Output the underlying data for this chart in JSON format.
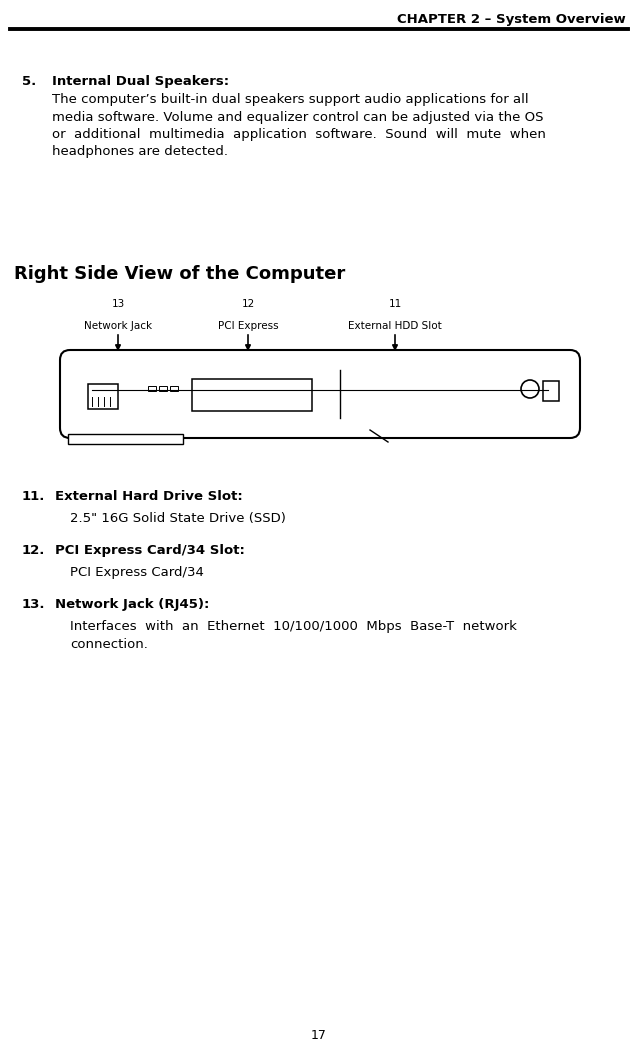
{
  "bg_color": "#ffffff",
  "header_text": "CHAPTER 2 – System Overview",
  "page_number": "17",
  "section5_label": "5.",
  "section5_title": "Internal Dual Speakers:",
  "section5_lines": [
    "The computer’s built-in dual speakers support audio applications for all",
    "media software. Volume and equalizer control can be adjusted via the OS",
    "or  additional  multimedia  application  software.  Sound  will  mute  when",
    "headphones are detected."
  ],
  "right_side_title": "Right Side View of the Computer",
  "item11_label": "11.",
  "item11_title": "External Hard Drive Slot:",
  "item11_body": "2.5\" 16G Solid State Drive (SSD)",
  "item12_label": "12.",
  "item12_title": "PCI Express Card/34 Slot:",
  "item12_body": "PCI Express Card/34",
  "item13_label": "13.",
  "item13_title": "Network Jack (RJ45):",
  "item13_body_line1": "Interfaces  with  an  Ethernet  10/100/1000  Mbps  Base-T  network",
  "item13_body_line2": "connection.",
  "text_color": "#000000",
  "line_color": "#000000"
}
